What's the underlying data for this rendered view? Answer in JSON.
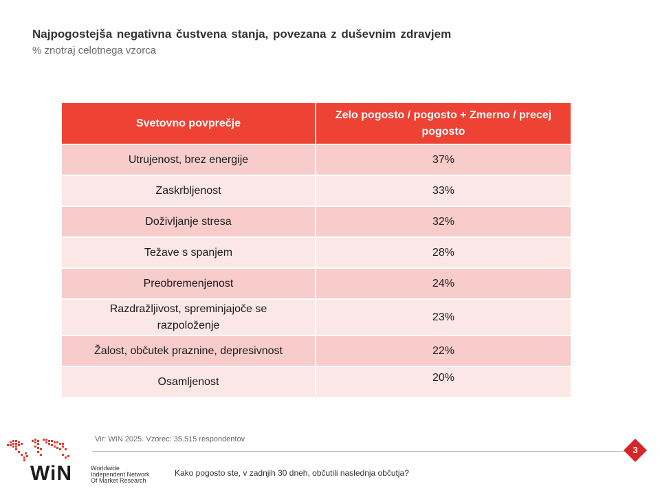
{
  "header": {
    "title": "Najpogostejša negativna čustvena stanja, povezana z duševnim zdravjem",
    "subtitle": "% znotraj celotnega vzorca"
  },
  "table": {
    "headers": [
      "Svetovno povprečje",
      "Zelo pogosto / pogosto + Zmerno / precej pogosto"
    ],
    "rows": [
      {
        "label": "Utrujenost, brez energije",
        "value": "37%"
      },
      {
        "label": "Zaskrbljenost",
        "value": "33%"
      },
      {
        "label": "Doživljanje stresa",
        "value": "32%"
      },
      {
        "label": "Težave s spanjem",
        "value": "28%"
      },
      {
        "label": "Preobremenjenost",
        "value": "24%"
      },
      {
        "label": "Razdražljivost, spreminjajoče se razpoloženje",
        "value": "23%"
      },
      {
        "label": "Žalost, občutek praznine, depresivnost",
        "value": "22%"
      },
      {
        "label": "Osamljenost",
        "value": "20%"
      }
    ]
  },
  "footer": {
    "source": "Vir: WIN 2025. Vzorec: 35.515 respondentov",
    "question": "Kako pogosto ste, v zadnjih 30 dneh, občutili naslednja občutja?",
    "page_number": "3",
    "logo_word": "WiN",
    "logo_line1": "Worldwide",
    "logo_line2": "Independent Network",
    "logo_line3": "Of Market Research"
  },
  "colors": {
    "header_red": "#ee4234",
    "row_dark": "#f7cccb",
    "row_light": "#fbe7e6",
    "badge_red": "#d6262a"
  }
}
